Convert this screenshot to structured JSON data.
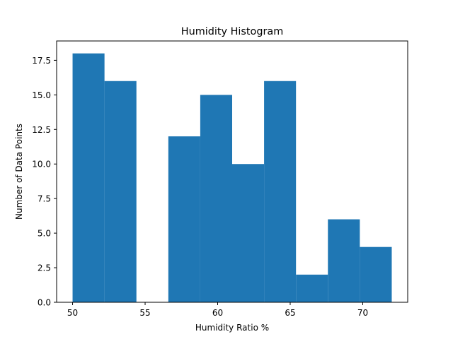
{
  "chart_data": {
    "type": "bar",
    "title": "Humidity Histogram",
    "xlabel": "Humidity Ratio %",
    "ylabel": "Number of Data Points",
    "bins": [
      {
        "x0": 50.0,
        "x1": 52.2,
        "count": 18
      },
      {
        "x0": 52.2,
        "x1": 54.4,
        "count": 16
      },
      {
        "x0": 54.4,
        "x1": 56.6,
        "count": 0
      },
      {
        "x0": 56.6,
        "x1": 58.8,
        "count": 12
      },
      {
        "x0": 58.8,
        "x1": 61.0,
        "count": 15
      },
      {
        "x0": 61.0,
        "x1": 63.2,
        "count": 10
      },
      {
        "x0": 63.2,
        "x1": 65.4,
        "count": 16
      },
      {
        "x0": 65.4,
        "x1": 67.6,
        "count": 2
      },
      {
        "x0": 67.6,
        "x1": 69.8,
        "count": 6
      },
      {
        "x0": 69.8,
        "x1": 72.0,
        "count": 4
      }
    ],
    "xlim": [
      48.9,
      73.1
    ],
    "ylim": [
      0,
      18.9
    ],
    "xticks": [
      {
        "value": 50,
        "label": "50"
      },
      {
        "value": 55,
        "label": "55"
      },
      {
        "value": 60,
        "label": "60"
      },
      {
        "value": 65,
        "label": "65"
      },
      {
        "value": 70,
        "label": "70"
      }
    ],
    "yticks": [
      {
        "value": 0,
        "label": "0.0"
      },
      {
        "value": 2.5,
        "label": "2.5"
      },
      {
        "value": 5,
        "label": "5.0"
      },
      {
        "value": 7.5,
        "label": "7.5"
      },
      {
        "value": 10,
        "label": "10.0"
      },
      {
        "value": 12.5,
        "label": "12.5"
      },
      {
        "value": 15,
        "label": "15.0"
      },
      {
        "value": 17.5,
        "label": "17.5"
      }
    ],
    "bar_color": "#1f77b4",
    "grid": false,
    "legend": "none"
  }
}
